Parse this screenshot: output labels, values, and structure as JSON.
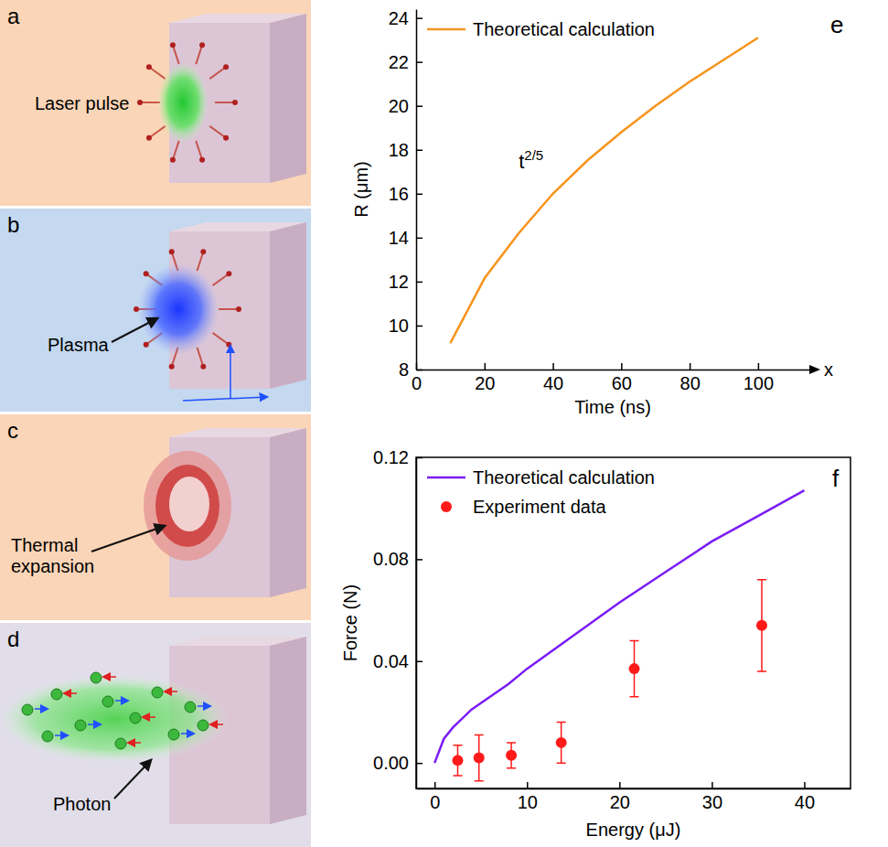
{
  "diagram": {
    "panels": [
      {
        "letter": "a",
        "label": "Laser pulse"
      },
      {
        "letter": "b",
        "label": "Plasma"
      },
      {
        "letter": "c",
        "label": "Thermal expansion"
      },
      {
        "letter": "d",
        "label": "Photon"
      }
    ]
  },
  "chart_letters": [
    "e",
    "f"
  ],
  "chart_data": [
    {
      "type": "line",
      "x_label": "Time (ns)",
      "y_label": "R (μm)",
      "x": [
        10,
        20,
        30,
        40,
        50,
        60,
        70,
        80,
        90,
        100
      ],
      "series": [
        {
          "name": "Theoretical calculation",
          "color": "#f7941d",
          "line_style": "solid",
          "values": [
            9.2,
            12.15,
            14.2,
            16.0,
            17.5,
            18.8,
            20.0,
            21.1,
            22.1,
            23.1
          ]
        }
      ],
      "xlim": [
        0,
        115
      ],
      "xticks": [
        0,
        20,
        40,
        60,
        80,
        100
      ],
      "ylim": [
        8,
        24.4
      ],
      "yticks": [
        8,
        10,
        12,
        14,
        16,
        18,
        20,
        22,
        24
      ],
      "legend": "upper left",
      "annotations": [
        {
          "text": "t",
          "superscript": "2/5"
        },
        {
          "text": "x"
        }
      ]
    },
    {
      "type": "line",
      "x_label": "Energy (μJ)",
      "y_label": "Force (N)",
      "series": [
        {
          "name": "Theoretical calculation",
          "type": "line",
          "color": "#7a1cf5",
          "line_style": "solid",
          "x": [
            0,
            1,
            2,
            4,
            6,
            8,
            10,
            15,
            20,
            25,
            30,
            35,
            40
          ],
          "values": [
            0,
            0.0095,
            0.014,
            0.021,
            0.026,
            0.031,
            0.037,
            0.05,
            0.063,
            0.075,
            0.087,
            0.097,
            0.107
          ]
        },
        {
          "name": "Experiment data",
          "type": "scatter",
          "color": "#ff1a1a",
          "marker": "circle",
          "x": [
            2.5,
            4.8,
            8.3,
            13.7,
            21.6,
            35.4
          ],
          "values": [
            0.001,
            0.002,
            0.003,
            0.008,
            0.037,
            0.054
          ],
          "errors": [
            0.006,
            0.009,
            0.005,
            0.008,
            0.011,
            0.018
          ]
        }
      ],
      "xlim": [
        -2,
        45
      ],
      "xticks": [
        0,
        10,
        20,
        30,
        40
      ],
      "ylim": [
        -0.01,
        0.12
      ],
      "yticks": [
        {
          "value": 0,
          "label": "0.00"
        },
        {
          "value": 0.04,
          "label": "0.04"
        },
        {
          "value": 0.08,
          "label": "0.08"
        },
        {
          "value": 0.12,
          "label": "0.12"
        }
      ],
      "legend": "upper left"
    }
  ]
}
